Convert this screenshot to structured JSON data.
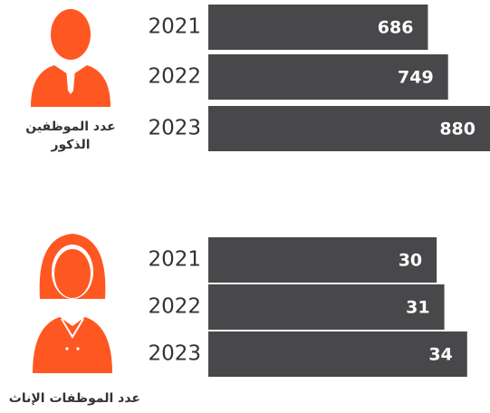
{
  "chart_data": [
    {
      "type": "bar",
      "orientation": "horizontal",
      "title": "عدد الموظفين الذكور",
      "categories": [
        "2021",
        "2022",
        "2023"
      ],
      "values": [
        686,
        749,
        880
      ],
      "color": "#48484a",
      "icon_color": "#ff5722",
      "xlim": [
        0,
        880
      ]
    },
    {
      "type": "bar",
      "orientation": "horizontal",
      "title": "عدد الموظفات الإناث",
      "categories": [
        "2021",
        "2022",
        "2023"
      ],
      "values": [
        30,
        31,
        34
      ],
      "color": "#48484a",
      "icon_color": "#ff5722",
      "xlim": [
        0,
        37
      ]
    }
  ]
}
